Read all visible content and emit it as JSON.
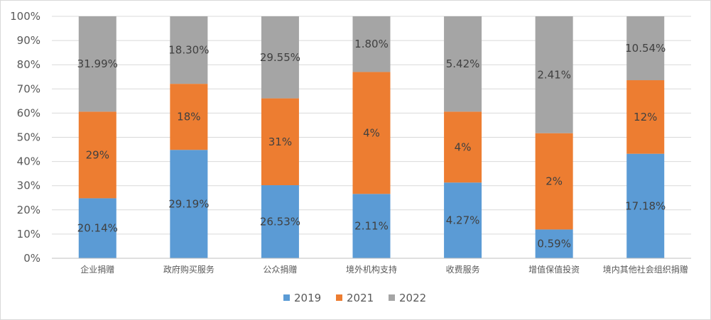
{
  "chart_data": {
    "type": "bar",
    "stacked": "percent",
    "categories": [
      "企业捐赠",
      "政府购买服务",
      "公众捐赠",
      "境外机构支持",
      "收费服务",
      "增值保值投资",
      "境内其他社会组织捐赠"
    ],
    "series": [
      {
        "name": "2019",
        "color": "#5b9bd5",
        "share_pct": [
          24.8,
          44.8,
          30.2,
          26.6,
          31.3,
          11.9,
          43.2
        ],
        "labels": [
          "20.14%",
          "29.19%",
          "26.53%",
          "2.11%",
          "4.27%",
          "0.59%",
          "17.18%"
        ]
      },
      {
        "name": "2021",
        "color": "#ed7d31",
        "share_pct": [
          35.8,
          27.3,
          35.9,
          50.4,
          29.3,
          39.8,
          30.4
        ],
        "labels": [
          "29%",
          "18%",
          "31%",
          "4%",
          "4%",
          "2%",
          "12%"
        ]
      },
      {
        "name": "2022",
        "color": "#a5a5a5",
        "share_pct": [
          39.4,
          27.9,
          33.9,
          23.0,
          39.4,
          48.3,
          26.4
        ],
        "labels": [
          "31.99%",
          "18.30%",
          "29.55%",
          "1.80%",
          "5.42%",
          "2.41%",
          "10.54%"
        ]
      }
    ],
    "y_ticks": [
      "0%",
      "10%",
      "20%",
      "30%",
      "40%",
      "50%",
      "60%",
      "70%",
      "80%",
      "90%",
      "100%"
    ],
    "ylim": [
      0,
      100
    ],
    "grid": true,
    "legend_position": "bottom"
  }
}
